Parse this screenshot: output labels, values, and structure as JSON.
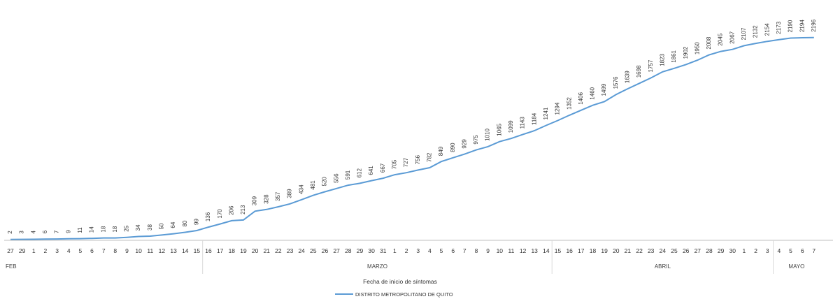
{
  "chart_data": {
    "type": "line",
    "title": "",
    "xlabel": "Fecha de inicio de síntomas",
    "ylabel": "",
    "categories": [
      "27",
      "29",
      "1",
      "2",
      "3",
      "4",
      "5",
      "6",
      "7",
      "8",
      "9",
      "10",
      "11",
      "12",
      "13",
      "14",
      "15",
      "16",
      "17",
      "18",
      "19",
      "20",
      "21",
      "22",
      "23",
      "24",
      "25",
      "26",
      "27",
      "28",
      "29",
      "30",
      "31",
      "1",
      "2",
      "3",
      "4",
      "5",
      "6",
      "7",
      "8",
      "9",
      "10",
      "11",
      "12",
      "13",
      "14",
      "15",
      "16",
      "17",
      "18",
      "19",
      "20",
      "21",
      "22",
      "23",
      "24",
      "25",
      "26",
      "27",
      "28",
      "29",
      "30",
      "1",
      "2",
      "3",
      "4",
      "5",
      "6",
      "7"
    ],
    "months": [
      {
        "label": "FEB",
        "index": 0
      },
      {
        "label": "MARZO",
        "index": 17
      },
      {
        "label": "ABRIL",
        "index": 47
      },
      {
        "label": "MAYO",
        "index": 66
      }
    ],
    "series": [
      {
        "name": "DISTRITO METROPOLITANO DE QUITO",
        "color": "#5b9bd5",
        "values": [
          2,
          3,
          4,
          6,
          7,
          9,
          11,
          14,
          18,
          18,
          25,
          34,
          38,
          50,
          64,
          80,
          99,
          136,
          170,
          206,
          213,
          309,
          328,
          357,
          389,
          434,
          481,
          520,
          556,
          591,
          612,
          641,
          667,
          705,
          727,
          756,
          782,
          849,
          890,
          929,
          975,
          1010,
          1065,
          1099,
          1143,
          1184,
          1241,
          1294,
          1352,
          1406,
          1460,
          1499,
          1576,
          1639,
          1698,
          1757,
          1823,
          1861,
          1902,
          1950,
          2008,
          2045,
          2067,
          2107,
          2132,
          2154,
          2173,
          2190,
          2194,
          2196
        ]
      }
    ],
    "ylim": [
      0,
      2300
    ],
    "grid": false,
    "legend": "bottom"
  }
}
